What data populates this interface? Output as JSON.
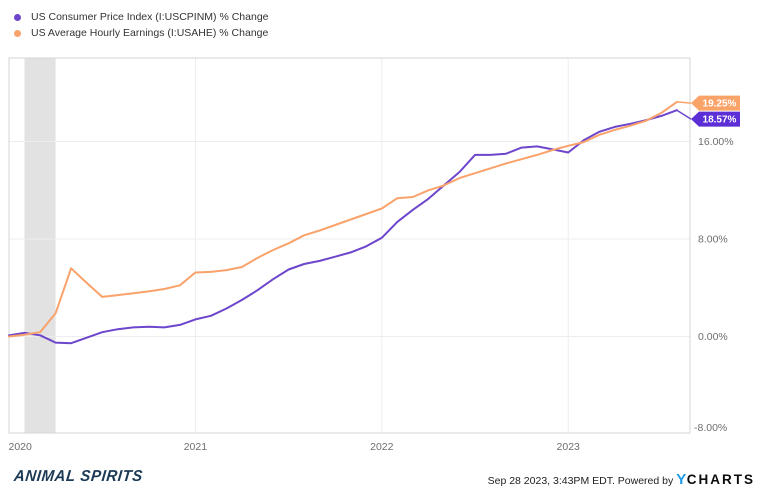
{
  "legend": {
    "items": [
      {
        "label": "US Consumer Price Index (I:USCPINM) % Change",
        "color": "#6d46cc"
      },
      {
        "label": "US Average Hourly Earnings (I:USAHE) % Change",
        "color": "#f9a26b"
      }
    ]
  },
  "chart_data": {
    "type": "line",
    "title": "",
    "x_range": {
      "start": "Jan 2020",
      "end": "Aug 2023",
      "frequency": "monthly",
      "points": 44
    },
    "x_tick_labels": [
      "2020",
      "2021",
      "2022",
      "2023"
    ],
    "x_tick_month_index": [
      0,
      12,
      24,
      36
    ],
    "y_tick_labels": [
      "16.00%",
      "8.00%",
      "0.00%",
      "-8.00%"
    ],
    "y_tick_values": [
      16,
      8,
      0,
      -8
    ],
    "ylim": [
      -8,
      22.8
    ],
    "grid": true,
    "legend_position": "top-left",
    "recession_band": {
      "start_month_index": 1,
      "end_month_index": 3,
      "color": "#e2e2e2"
    },
    "series": [
      {
        "name": "US Consumer Price Index (I:USCPINM) % Change",
        "color": "#6d46cc",
        "badge_color": "#5b2ed6",
        "end_label": "18.57%",
        "values": [
          0.1,
          0.3,
          0.1,
          -0.5,
          -0.55,
          -0.1,
          0.35,
          0.6,
          0.75,
          0.8,
          0.75,
          0.95,
          1.4,
          1.7,
          2.3,
          3.0,
          3.8,
          4.7,
          5.5,
          5.95,
          6.2,
          6.55,
          6.9,
          7.4,
          8.1,
          9.4,
          10.4,
          11.3,
          12.4,
          13.5,
          14.9,
          14.9,
          15.0,
          15.5,
          15.6,
          15.35,
          15.1,
          16.1,
          16.8,
          17.2,
          17.45,
          17.75,
          18.1,
          18.57
        ]
      },
      {
        "name": "US Average Hourly Earnings (I:USAHE) % Change",
        "color": "#f9a26b",
        "badge_color": "#faa369",
        "end_label": "19.25%",
        "values": [
          0.0,
          0.15,
          0.35,
          1.9,
          5.6,
          4.4,
          3.25,
          3.4,
          3.55,
          3.7,
          3.9,
          4.2,
          5.25,
          5.3,
          5.45,
          5.7,
          6.45,
          7.1,
          7.65,
          8.3,
          8.7,
          9.15,
          9.6,
          10.05,
          10.5,
          11.35,
          11.45,
          12.0,
          12.4,
          13.0,
          13.4,
          13.8,
          14.2,
          14.55,
          14.9,
          15.3,
          15.65,
          15.95,
          16.55,
          16.95,
          17.3,
          17.7,
          18.35,
          19.25
        ]
      }
    ]
  },
  "footer": {
    "brand": "ANIMAL SPIRITS",
    "timestamp": "Sep 28 2023, 3:43PM EDT.",
    "powered_by": "Powered by",
    "logo_y": "Y",
    "logo_rest": "CHARTS",
    "logo_y_color": "#1e9be9"
  }
}
